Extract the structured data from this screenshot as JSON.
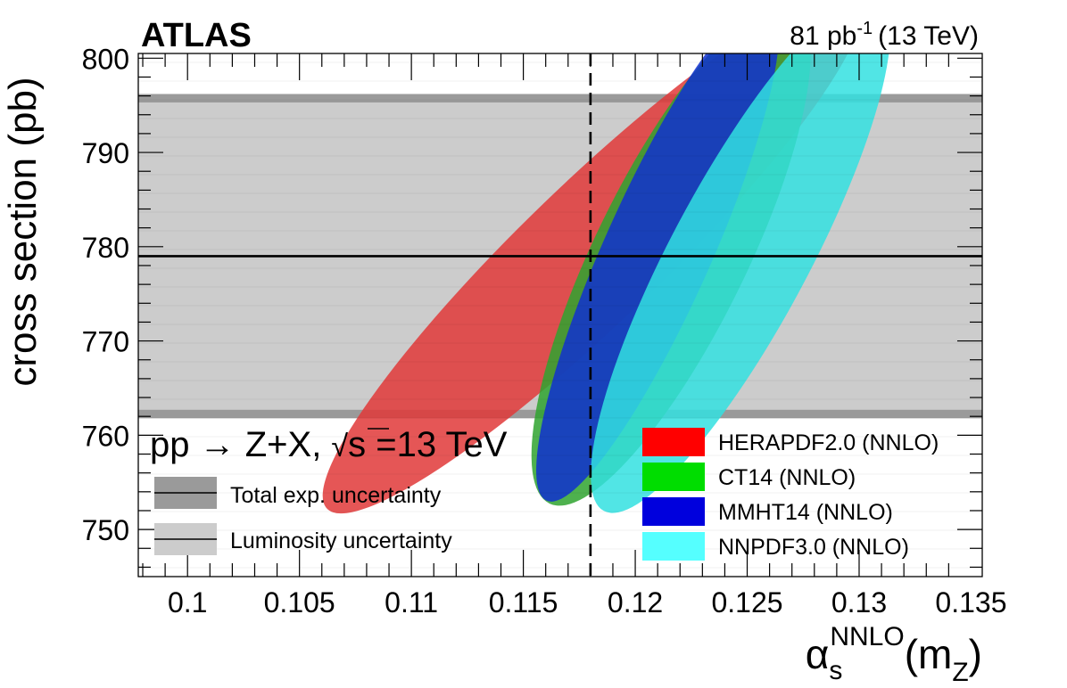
{
  "chart_data": {
    "type": "scatter",
    "subtype": "correlation-ellipses",
    "experiment": "ATLAS",
    "luminosity_label": "81 pb",
    "luminosity_exp": "-1",
    "energy_label": "(13 TeV)",
    "process": {
      "prefix": "pp ",
      "arrow": "→",
      "suffix": " Z+X, ",
      "sqrt_symbol": "√",
      "s": "s",
      "energy": " =13 TeV"
    },
    "xlabel": {
      "alpha": "α",
      "sub": "s",
      "sup": "NNLO",
      "paren_open": "(m",
      "z": "Z",
      "paren_close": ")"
    },
    "ylabel": "cross section (pb)",
    "xlim": [
      0.0978,
      0.1355
    ],
    "ylim": [
      745,
      800.5
    ],
    "xticks": [
      {
        "v": 0.1,
        "label": "0.1"
      },
      {
        "v": 0.105,
        "label": "0.105"
      },
      {
        "v": 0.11,
        "label": "0.11"
      },
      {
        "v": 0.115,
        "label": "0.115"
      },
      {
        "v": 0.12,
        "label": "0.12"
      },
      {
        "v": 0.125,
        "label": "0.125"
      },
      {
        "v": 0.13,
        "label": "0.13"
      },
      {
        "v": 0.135,
        "label": "0.135"
      }
    ],
    "yticks": [
      {
        "v": 750,
        "label": "750"
      },
      {
        "v": 760,
        "label": "760"
      },
      {
        "v": 770,
        "label": "770"
      },
      {
        "v": 780,
        "label": "780"
      },
      {
        "v": 790,
        "label": "790"
      },
      {
        "v": 800,
        "label": "800"
      }
    ],
    "measurement": {
      "value": 779.0,
      "lumi_band": [
        762.7,
        795.3
      ],
      "total_band": [
        761.8,
        796.2
      ]
    },
    "alphas_reference": 0.118,
    "ellipses": [
      {
        "name": "HERAPDF2.0 (NNLO)",
        "color": "#ff0000",
        "fill": "#e03838",
        "cx": 0.1181,
        "cy": 779.4,
        "rx_deg": 44,
        "rx": 0.0165,
        "ry": 0.0031
      },
      {
        "name": "CT14 (NNLO)",
        "color": "#00dd00",
        "fill": "#2fa32f",
        "cx": 0.1216,
        "cy": 779.2,
        "rx_deg": 64,
        "rx": 0.0124,
        "ry": 0.0034
      },
      {
        "name": "MMHT14 (NNLO)",
        "color": "#0000dd",
        "fill": "#1030d0",
        "cx": 0.121,
        "cy": 779.5,
        "rx_deg": 66,
        "rx": 0.0122,
        "ry": 0.0024
      },
      {
        "name": "NNPDF3.0 (NNLO)",
        "color": "#55ffff",
        "fill": "#33e0e0",
        "cx": 0.1247,
        "cy": 779.2,
        "rx_deg": 62,
        "rx": 0.013,
        "ry": 0.0031
      }
    ],
    "legend_left": [
      {
        "label": "Total exp. uncertainty",
        "color": "#9a9a9a"
      },
      {
        "label": "Luminosity uncertainty",
        "color": "#cccccc"
      }
    ]
  }
}
